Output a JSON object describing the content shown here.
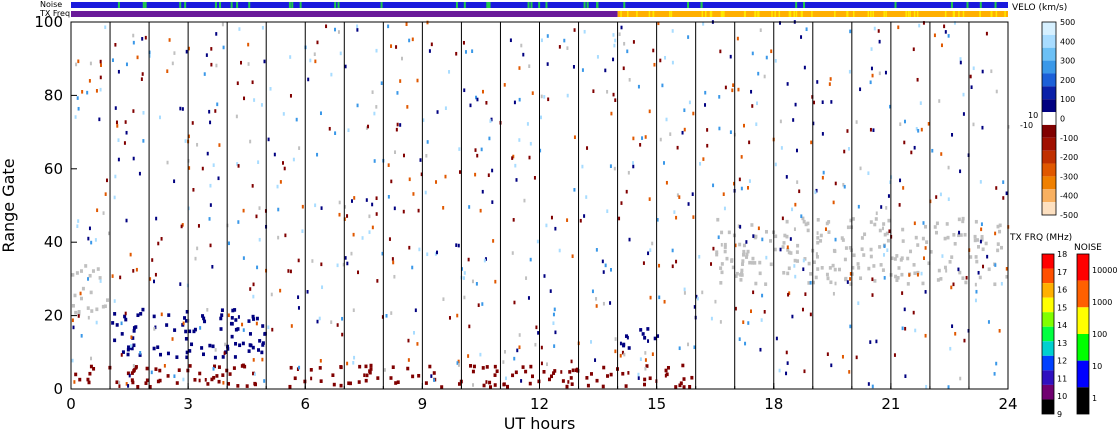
{
  "chart_data": {
    "type": "heatmap",
    "xlabel": "UT hours",
    "ylabel": "Range Gate",
    "xlim": [
      0,
      24
    ],
    "ylim": [
      0,
      100
    ],
    "xticks": [
      0,
      3,
      6,
      9,
      12,
      15,
      18,
      21,
      24
    ],
    "yticks": [
      0,
      20,
      40,
      60,
      80,
      100
    ],
    "hour_lines": [
      1,
      2,
      3,
      4,
      5,
      6,
      7,
      8,
      9,
      10,
      11,
      12,
      13,
      14,
      15,
      16,
      17,
      18,
      19,
      20,
      21,
      22,
      23
    ],
    "status_bars": {
      "noise_label": "Noise",
      "txfreq_label": "TX Freq",
      "noise_color": "#1a1adc",
      "noise_marks_color": "#22c84a",
      "txfreq_segments": [
        {
          "from": 0,
          "to": 14,
          "color": "#6a1a9a"
        },
        {
          "from": 14,
          "to": 24,
          "color": "#ffb000"
        }
      ]
    },
    "velocity_colorbar": {
      "title": "VELO (km/s)",
      "ticks": [
        "500",
        "400",
        "300",
        "200",
        "100",
        "0",
        "-100",
        "-200",
        "-300",
        "-400",
        "-500"
      ],
      "side_labels": [
        "10",
        "-10"
      ],
      "colors": [
        "#d6f0ff",
        "#a8dcff",
        "#6cc0f5",
        "#3a98e8",
        "#1c60d8",
        "#0a20a8",
        "#000080",
        "#ffffff",
        "#800000",
        "#a01000",
        "#c03000",
        "#e05800",
        "#f08000",
        "#f8b060",
        "#fde0c0"
      ]
    },
    "txfreq_colorbar": {
      "title": "TX FRQ (MHz)",
      "ticks": [
        "18",
        "17",
        "16",
        "15",
        "14",
        "13",
        "12",
        "11",
        "10",
        "9"
      ],
      "colors": [
        "#ff0000",
        "#ff5000",
        "#ffb000",
        "#ffff00",
        "#80ff00",
        "#00ff40",
        "#00d0d0",
        "#0040ff",
        "#3010c0",
        "#700070",
        "#000000"
      ]
    },
    "noise_colorbar": {
      "title": "NOISE",
      "ticks": [
        "10000",
        "1000",
        "100",
        "10",
        "1"
      ],
      "colors": [
        "#ff0000",
        "#ff6000",
        "#ffff00",
        "#00ff00",
        "#0000ff",
        "#000000"
      ]
    },
    "regions": [
      {
        "name": "ground scatter early",
        "from": 0,
        "to": 1,
        "gate_lo": 20,
        "gate_hi": 34,
        "fill": "#c0c0c0"
      },
      {
        "name": "ground scatter late",
        "from": 16.5,
        "to": 24,
        "gate_lo": 28,
        "gate_hi": 46,
        "fill": "#c0c0c0"
      },
      {
        "name": "negative velocity band",
        "from": 0,
        "to": 16,
        "gate_lo": 0,
        "gate_hi": 6,
        "fill": "#800000"
      },
      {
        "name": "positive velocity echo",
        "from": 1,
        "to": 5,
        "gate_lo": 8,
        "gate_hi": 22,
        "fill": "#000080"
      },
      {
        "name": "positive velocity echo 2",
        "from": 14,
        "to": 15,
        "gate_lo": 10,
        "gate_hi": 16,
        "fill": "#000080"
      }
    ]
  }
}
